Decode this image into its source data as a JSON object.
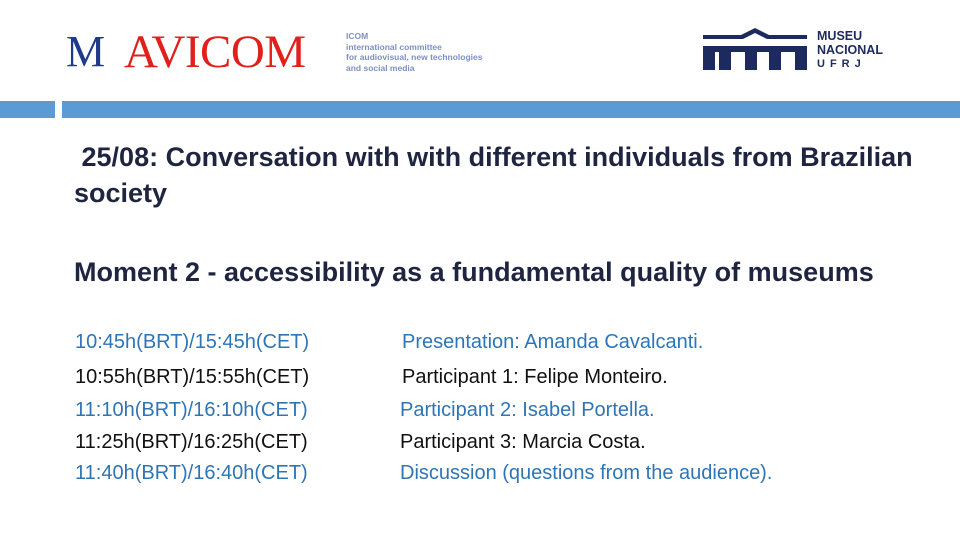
{
  "header": {
    "avicom_logo": {
      "mark": "M",
      "name": "AVICOM",
      "subtitle_lines": [
        "ICOM",
        "international committee",
        "for audiovisual, new technologies",
        "and social media"
      ]
    },
    "museu_logo": {
      "lines": [
        "MUSEU",
        "NACIONAL",
        "UFRJ"
      ],
      "color": "#1d2a5e"
    }
  },
  "colors": {
    "accent_bar": "#5b9bd5",
    "blue_text": "#2e75b6",
    "title": "#1f2540",
    "avicom_red": "#e0201b"
  },
  "slide": {
    "title": " 25/08: Conversation with with different individuals from Brazilian society",
    "moment": "Moment 2 - accessibility as a fundamental quality of museums",
    "schedule": [
      {
        "time": "10:45h(BRT)/15:45h(CET)",
        "desc": "Presentation: Amanda Cavalcanti."
      },
      {
        "time": "10:55h(BRT)/15:55h(CET)",
        "desc": "Participant 1: Felipe Monteiro."
      },
      {
        "time": "11:10h(BRT)/16:10h(CET)",
        "desc": "Participant 2: Isabel Portella."
      },
      {
        "time": "11:25h(BRT)/16:25h(CET)",
        "desc": "Participant 3: Marcia Costa."
      },
      {
        "time": "11:40h(BRT)/16:40h(CET)",
        "desc": "Discussion (questions from the audience)."
      }
    ]
  }
}
